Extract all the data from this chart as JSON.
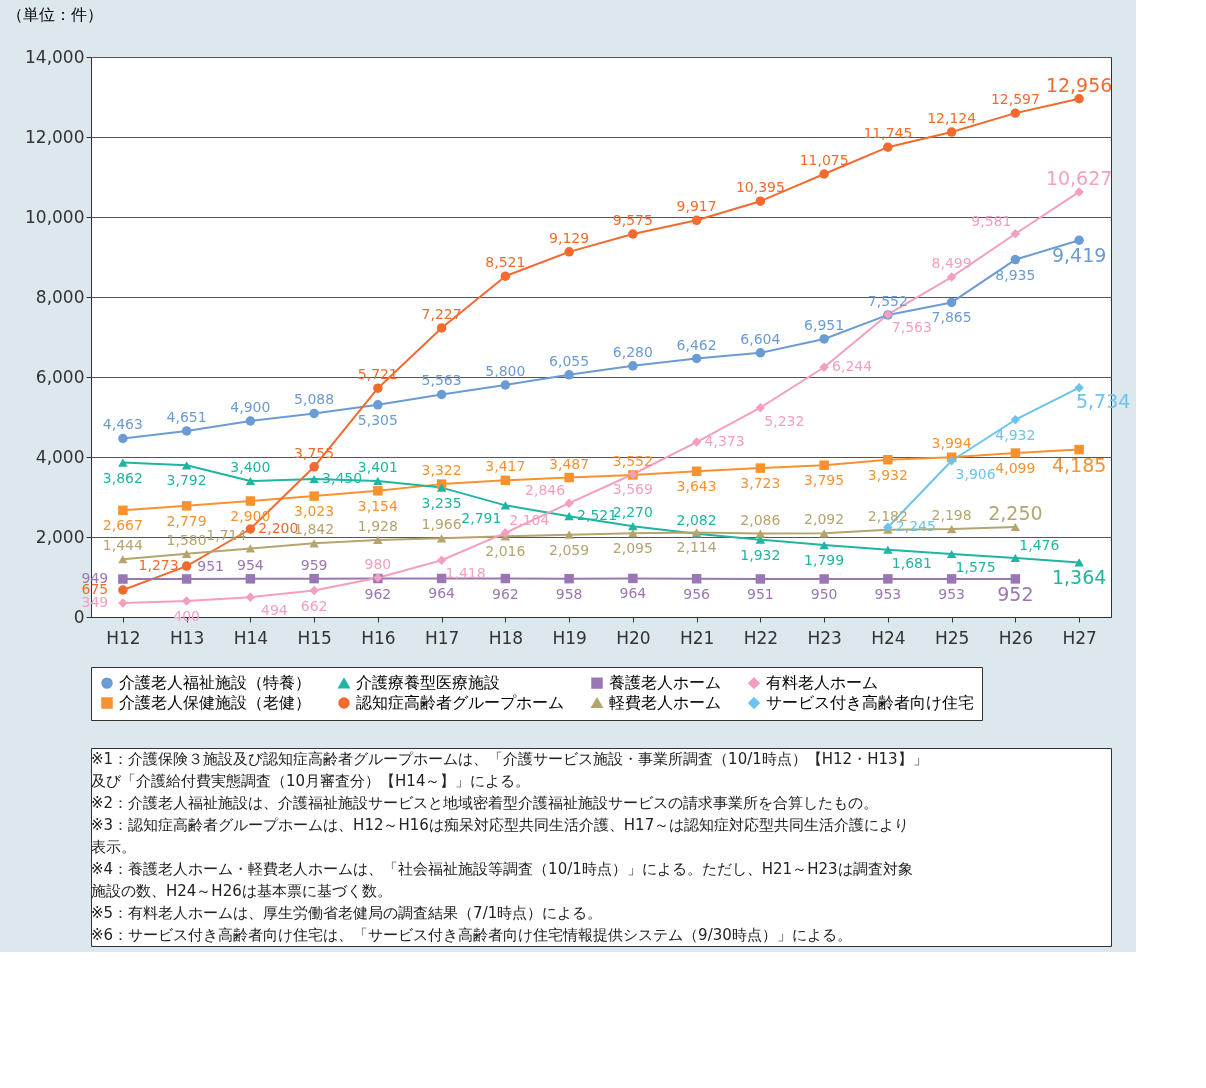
{
  "chart_data": {
    "type": "line",
    "ylabel": "（単位：件）",
    "categories": [
      "H12",
      "H13",
      "H14",
      "H15",
      "H16",
      "H17",
      "H18",
      "H19",
      "H20",
      "H21",
      "H22",
      "H23",
      "H24",
      "H25",
      "H26",
      "H27"
    ],
    "ylim": [
      0,
      14000
    ],
    "yticks": [
      0,
      {
        "value": 2000,
        "label": "2,000"
      },
      {
        "value": 4000,
        "label": "4,000"
      },
      {
        "value": 6000,
        "label": "6,000"
      },
      {
        "value": 8000,
        "label": "8,000"
      },
      {
        "value": 10000,
        "label": "10,000"
      },
      {
        "value": 12000,
        "label": "12,000"
      },
      {
        "value": 14000,
        "label": "14,000"
      }
    ],
    "grid": "y",
    "legend": "bottom",
    "series": [
      {
        "name": "介護老人福祉施設（特養）",
        "color": "#6a9bd3",
        "marker": "circle",
        "values": [
          4463,
          4651,
          4900,
          5088,
          5305,
          5563,
          5800,
          6055,
          6280,
          6462,
          6604,
          6951,
          7552,
          7865,
          8935,
          9419
        ],
        "value_labels": [
          "4,463",
          "4,651",
          "4,900",
          "5,088",
          "5,305",
          "5,563",
          "5,800",
          "6,055",
          "6,280",
          "6,462",
          "6,604",
          "6,951",
          "7,552",
          "7,865",
          "8,935",
          "9,419"
        ]
      },
      {
        "name": "介護老人保健施設（老健）",
        "color": "#f7922e",
        "marker": "square",
        "values": [
          2667,
          2779,
          2900,
          3023,
          3154,
          3322,
          3417,
          3487,
          3552,
          3643,
          3723,
          3795,
          3932,
          3994,
          4099,
          4185
        ],
        "value_labels": [
          "2,667",
          "2,779",
          "2,900",
          "3,023",
          "3,154",
          "3,322",
          "3,417",
          "3,487",
          "3,552",
          "3,643",
          "3,723",
          "3,795",
          "3,932",
          "3,994",
          "4,099",
          "4,185"
        ]
      },
      {
        "name": "介護療養型医療施設",
        "color": "#20b5a0",
        "marker": "triangle",
        "values": [
          3862,
          3792,
          3400,
          3450,
          3401,
          3235,
          2791,
          2521,
          2270,
          2082,
          1932,
          1799,
          1681,
          1575,
          1476,
          1364
        ],
        "value_labels": [
          "3,862",
          "3,792",
          "3,400",
          "3,450",
          "3,401",
          "3,235",
          "2,791",
          "2,521",
          "2,270",
          "2,082",
          "1,932",
          "1,799",
          "1,681",
          "1,575",
          "1,476",
          "1,364"
        ]
      },
      {
        "name": "認知症高齢者グループホーム",
        "color": "#f26a2e",
        "marker": "circle",
        "values": [
          675,
          1273,
          2200,
          3755,
          5721,
          7227,
          8521,
          9129,
          9575,
          9917,
          10395,
          11075,
          11745,
          12124,
          12597,
          12956
        ],
        "value_labels": [
          "675",
          "1,273",
          "2,200",
          "3,755",
          "5,721",
          "7,227",
          "8,521",
          "9,129",
          "9,575",
          "9,917",
          "10,395",
          "11,075",
          "11,745",
          "12,124",
          "12,597",
          "12,956"
        ]
      },
      {
        "name": "養護老人ホーム",
        "color": "#9b76b5",
        "marker": "square",
        "values": [
          949,
          951,
          954,
          959,
          962,
          964,
          962,
          958,
          964,
          956,
          951,
          950,
          953,
          953,
          952,
          null
        ],
        "value_labels": [
          "949",
          "951",
          "954",
          "959",
          "962",
          "964",
          "962",
          "958",
          "964",
          "956",
          "951",
          "950",
          "953",
          "953",
          "952",
          null
        ]
      },
      {
        "name": "軽費老人ホーム",
        "color": "#b5a46e",
        "marker": "triangle",
        "values": [
          1444,
          1580,
          1714,
          1842,
          1928,
          1966,
          2016,
          2059,
          2095,
          2114,
          2086,
          2092,
          2182,
          2198,
          2250,
          null
        ],
        "value_labels": [
          "1,444",
          "1,580",
          "1,714",
          "1,842",
          "1,928",
          "1,966",
          "2,016",
          "2,059",
          "2,095",
          "2,114",
          "2,086",
          "2,092",
          "2,182",
          "2,198",
          "2,250",
          null
        ]
      },
      {
        "name": "有料老人ホーム",
        "color": "#f49ec0",
        "marker": "diamond",
        "values": [
          349,
          400,
          494,
          662,
          980,
          1418,
          2104,
          2846,
          3569,
          4373,
          5232,
          6244,
          7563,
          8499,
          9581,
          10627
        ],
        "value_labels": [
          "349",
          "400",
          "494",
          "662",
          "980",
          "1,418",
          "2,104",
          "2,846",
          "3,569",
          "4,373",
          "5,232",
          "6,244",
          "7,563",
          "8,499",
          "9,581",
          "10,627"
        ]
      },
      {
        "name": "サービス付き高齢者向け住宅",
        "color": "#6cc3ee",
        "marker": "diamond",
        "values": [
          null,
          null,
          null,
          null,
          null,
          null,
          null,
          null,
          null,
          null,
          null,
          null,
          2245,
          3906,
          4932,
          5734
        ],
        "value_labels": [
          null,
          null,
          null,
          null,
          null,
          null,
          null,
          null,
          null,
          null,
          null,
          null,
          "2,245",
          "3,906",
          "4,932",
          "5,734"
        ]
      }
    ],
    "annotations": [
      "※1：介護保険３施設及び認知症高齢者グループホームは、「介護サービス施設・事業所調査（10/1時点）【H12・H13】」",
      "　　及び「介護給付費実態調査（10月審査分）【H14～】」による。",
      "※2：介護老人福祉施設は、介護福祉施設サービスと地域密着型介護福祉施設サービスの請求事業所を合算したもの。",
      "※3：認知症高齢者グループホームは、H12～H16は痴呆対応型共同生活介護、H17～は認知症対応型共同生活介護により",
      "　　表示。",
      "※4：養護老人ホーム・軽費老人ホームは、「社会福祉施設等調査（10/1時点）」による。ただし、H21～H23は調査対象",
      "　　施設の数、H24～H26は基本票に基づく数。",
      "※5：有料老人ホームは、厚生労働省老健局の調査結果（7/1時点）による。",
      "※6：サービス付き高齢者向け住宅は、「サービス付き高齢者向け住宅情報提供システム（9/30時点）」による。"
    ]
  }
}
